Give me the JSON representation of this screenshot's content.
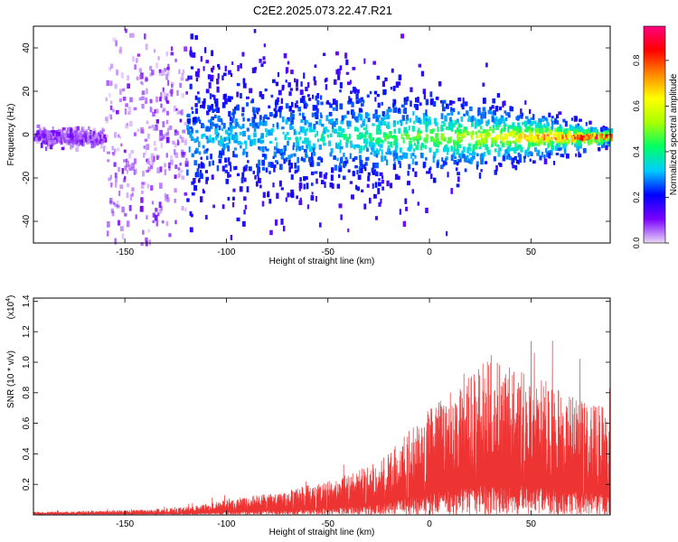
{
  "title": "C2E2.2025.073.22.47.R21",
  "chart_data": [
    {
      "type": "heatmap",
      "xlabel": "Height of straight line (km)",
      "ylabel": "Frequency (Hz)",
      "xlim": [
        -195,
        89
      ],
      "ylim": [
        -50,
        50
      ],
      "xticks": [
        -150,
        -100,
        -50,
        0,
        50
      ],
      "xtick_labels": [
        "-150",
        "-100",
        "-50",
        "0",
        "50"
      ],
      "yticks": [
        -40,
        -20,
        0,
        20,
        40
      ],
      "ytick_labels": [
        "-40",
        "-20",
        "0",
        "20",
        "40"
      ],
      "colorbar": {
        "label": "Normalized spectral amplitude",
        "range": [
          0,
          0.95
        ],
        "ticks": [
          0.0,
          0.2,
          0.4,
          0.6,
          0.8
        ],
        "tick_labels": [
          "0.0",
          "0.2",
          "0.4",
          "0.6",
          "0.8"
        ],
        "colors": [
          "#e8d8f4",
          "#7a00ff",
          "#0000ff",
          "#00ccff",
          "#00ff66",
          "#aaff00",
          "#ffff00",
          "#ff8800",
          "#ff0000",
          "#ff0080"
        ]
      },
      "description_ridge": [
        {
          "x": -160,
          "spread": 40
        },
        {
          "x": -120,
          "spread": 20
        },
        {
          "x": -50,
          "spread": 15
        },
        {
          "x": 0,
          "spread": 12
        },
        {
          "x": 50,
          "spread": 6
        },
        {
          "x": 85,
          "spread": 2
        }
      ]
    },
    {
      "type": "line",
      "xlabel": "Height of straight line (km)",
      "ylabel": "SNR (10 * v/v)",
      "yscale_label": "(x10",
      "yscale_exp": "4",
      "yscale_close": ")",
      "xlim": [
        -195,
        89
      ],
      "ylim": [
        0,
        1.42
      ],
      "xticks": [
        -150,
        -100,
        -50,
        0,
        50
      ],
      "xtick_labels": [
        "-150",
        "-100",
        "-50",
        "0",
        "50"
      ],
      "yticks": [
        0.2,
        0.4,
        0.6,
        0.8,
        1.0,
        1.2,
        1.4
      ],
      "ytick_labels": [
        "0.2",
        "0.4",
        "0.6",
        "0.8",
        "1.0",
        "1.2",
        "1.4"
      ],
      "series": [
        {
          "color": "#ee3333",
          "envelope": [
            {
              "x": -195,
              "y": 0.02
            },
            {
              "x": -150,
              "y": 0.03
            },
            {
              "x": -120,
              "y": 0.05
            },
            {
              "x": -100,
              "y": 0.1
            },
            {
              "x": -75,
              "y": 0.15
            },
            {
              "x": -50,
              "y": 0.22
            },
            {
              "x": -25,
              "y": 0.35
            },
            {
              "x": -10,
              "y": 0.55
            },
            {
              "x": 0,
              "y": 0.7
            },
            {
              "x": 15,
              "y": 0.85
            },
            {
              "x": 30,
              "y": 1.05
            },
            {
              "x": 45,
              "y": 0.95
            },
            {
              "x": 60,
              "y": 0.85
            },
            {
              "x": 75,
              "y": 0.75
            },
            {
              "x": 89,
              "y": 0.7
            }
          ]
        }
      ]
    }
  ]
}
